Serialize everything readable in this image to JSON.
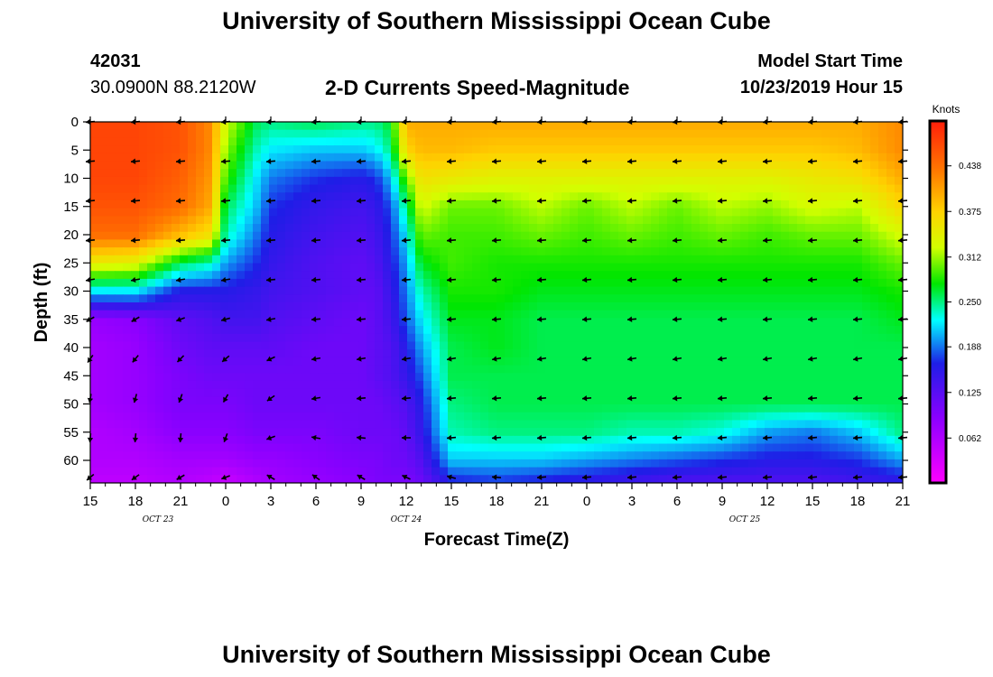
{
  "header": {
    "title_top": "University of Southern Mississippi Ocean Cube",
    "title_bottom": "University of Southern Mississippi Ocean Cube",
    "station_id": "42031",
    "station_coords": "30.0900N 88.2120W",
    "plot_title": "2-D Currents Speed-Magnitude",
    "model_start_label": "Model Start Time",
    "model_start_value": "10/23/2019 Hour 15"
  },
  "chart_data": {
    "type": "heatmap",
    "title": "2-D Currents Speed-Magnitude",
    "xlabel": "Forecast Time(Z)",
    "ylabel": "Depth (ft)",
    "x_ticks": [
      "15",
      "18",
      "21",
      "0",
      "3",
      "6",
      "9",
      "12",
      "15",
      "18",
      "21",
      "0",
      "3",
      "6",
      "9",
      "12",
      "15",
      "18",
      "21"
    ],
    "x_hours": [
      0,
      54
    ],
    "date_labels": [
      {
        "text": "OCT 23",
        "hour": 4.5
      },
      {
        "text": "OCT 24",
        "hour": 21
      },
      {
        "text": "OCT 25",
        "hour": 43.5
      }
    ],
    "y_ticks": [
      0,
      5,
      10,
      15,
      20,
      25,
      30,
      35,
      40,
      45,
      50,
      55,
      60
    ],
    "ylim": [
      0,
      64
    ],
    "colorbar": {
      "label": "Knots",
      "ticks": [
        "0.438",
        "0.375",
        "0.312",
        "0.250",
        "0.188",
        "0.125",
        "0.062"
      ],
      "tick_values": [
        0.438,
        0.375,
        0.312,
        0.25,
        0.188,
        0.125,
        0.062
      ],
      "range": [
        0.0,
        0.5
      ]
    },
    "speed_grid": {
      "hours": [
        0,
        3,
        6,
        8,
        9,
        11,
        12,
        15,
        18,
        19,
        20,
        21,
        22,
        24,
        27,
        30,
        33,
        36,
        39,
        42,
        45,
        48,
        51,
        54
      ],
      "depths": [
        0,
        5,
        10,
        15,
        20,
        25,
        30,
        35,
        40,
        45,
        50,
        55,
        60,
        64
      ],
      "values": [
        [
          0.47,
          0.47,
          0.46,
          0.42,
          0.33,
          0.26,
          0.25,
          0.26,
          0.25,
          0.25,
          0.27,
          0.4,
          0.4,
          0.4,
          0.4,
          0.4,
          0.4,
          0.4,
          0.4,
          0.4,
          0.4,
          0.4,
          0.4,
          0.42
        ],
        [
          0.47,
          0.47,
          0.46,
          0.42,
          0.31,
          0.24,
          0.22,
          0.21,
          0.21,
          0.22,
          0.25,
          0.37,
          0.39,
          0.39,
          0.38,
          0.38,
          0.38,
          0.38,
          0.38,
          0.38,
          0.38,
          0.38,
          0.39,
          0.42
        ],
        [
          0.47,
          0.47,
          0.45,
          0.41,
          0.29,
          0.22,
          0.19,
          0.17,
          0.16,
          0.17,
          0.21,
          0.3,
          0.36,
          0.35,
          0.34,
          0.34,
          0.34,
          0.34,
          0.34,
          0.34,
          0.34,
          0.35,
          0.36,
          0.4
        ],
        [
          0.46,
          0.46,
          0.44,
          0.4,
          0.26,
          0.21,
          0.17,
          0.15,
          0.14,
          0.15,
          0.18,
          0.25,
          0.33,
          0.3,
          0.3,
          0.32,
          0.3,
          0.32,
          0.3,
          0.32,
          0.31,
          0.33,
          0.32,
          0.37
        ],
        [
          0.44,
          0.44,
          0.39,
          0.36,
          0.24,
          0.19,
          0.16,
          0.14,
          0.13,
          0.14,
          0.17,
          0.22,
          0.3,
          0.29,
          0.29,
          0.3,
          0.29,
          0.3,
          0.29,
          0.3,
          0.29,
          0.3,
          0.3,
          0.33
        ],
        [
          0.35,
          0.34,
          0.26,
          0.24,
          0.2,
          0.17,
          0.15,
          0.13,
          0.12,
          0.13,
          0.16,
          0.2,
          0.27,
          0.29,
          0.28,
          0.28,
          0.28,
          0.28,
          0.28,
          0.28,
          0.28,
          0.28,
          0.28,
          0.3
        ],
        [
          0.22,
          0.22,
          0.16,
          0.16,
          0.16,
          0.15,
          0.14,
          0.13,
          0.12,
          0.12,
          0.15,
          0.19,
          0.24,
          0.28,
          0.28,
          0.27,
          0.27,
          0.27,
          0.27,
          0.27,
          0.27,
          0.27,
          0.27,
          0.28
        ],
        [
          0.08,
          0.09,
          0.12,
          0.13,
          0.14,
          0.14,
          0.13,
          0.12,
          0.11,
          0.12,
          0.14,
          0.18,
          0.22,
          0.27,
          0.27,
          0.26,
          0.26,
          0.26,
          0.26,
          0.26,
          0.26,
          0.26,
          0.26,
          0.27
        ],
        [
          0.07,
          0.08,
          0.11,
          0.12,
          0.12,
          0.12,
          0.12,
          0.11,
          0.11,
          0.12,
          0.13,
          0.16,
          0.2,
          0.26,
          0.27,
          0.26,
          0.26,
          0.26,
          0.26,
          0.26,
          0.26,
          0.26,
          0.26,
          0.26
        ],
        [
          0.07,
          0.08,
          0.1,
          0.11,
          0.11,
          0.11,
          0.11,
          0.11,
          0.11,
          0.12,
          0.13,
          0.15,
          0.18,
          0.26,
          0.26,
          0.26,
          0.26,
          0.26,
          0.26,
          0.26,
          0.26,
          0.26,
          0.26,
          0.26
        ],
        [
          0.07,
          0.08,
          0.1,
          0.1,
          0.1,
          0.11,
          0.11,
          0.11,
          0.11,
          0.11,
          0.12,
          0.13,
          0.16,
          0.25,
          0.26,
          0.26,
          0.26,
          0.26,
          0.26,
          0.26,
          0.26,
          0.26,
          0.26,
          0.26
        ],
        [
          0.06,
          0.07,
          0.09,
          0.09,
          0.09,
          0.1,
          0.1,
          0.1,
          0.11,
          0.11,
          0.11,
          0.12,
          0.15,
          0.24,
          0.25,
          0.25,
          0.25,
          0.24,
          0.24,
          0.23,
          0.2,
          0.19,
          0.21,
          0.25
        ],
        [
          0.06,
          0.06,
          0.07,
          0.07,
          0.07,
          0.08,
          0.08,
          0.09,
          0.1,
          0.1,
          0.11,
          0.11,
          0.13,
          0.21,
          0.21,
          0.21,
          0.2,
          0.19,
          0.18,
          0.17,
          0.16,
          0.16,
          0.17,
          0.2
        ],
        [
          0.05,
          0.05,
          0.06,
          0.05,
          0.04,
          0.06,
          0.07,
          0.08,
          0.09,
          0.1,
          0.1,
          0.1,
          0.11,
          0.16,
          0.17,
          0.16,
          0.15,
          0.14,
          0.13,
          0.13,
          0.13,
          0.13,
          0.14,
          0.15
        ]
      ]
    },
    "vectors": {
      "hours": [
        0,
        3,
        6,
        9,
        12,
        15,
        18,
        21,
        24,
        27,
        30,
        33,
        36,
        39,
        42,
        45,
        48,
        51,
        54
      ],
      "depths": [
        0,
        7,
        14,
        21,
        28,
        35,
        42,
        49,
        56,
        63
      ],
      "angle_rows": [
        [
          185,
          185,
          185,
          185,
          185,
          185,
          185,
          185,
          185,
          185,
          185,
          185,
          185,
          185,
          185,
          185,
          185,
          185,
          185
        ],
        [
          185,
          185,
          185,
          185,
          185,
          185,
          185,
          185,
          185,
          185,
          185,
          185,
          185,
          185,
          185,
          185,
          185,
          185,
          185
        ],
        [
          185,
          185,
          185,
          185,
          185,
          185,
          185,
          185,
          185,
          185,
          185,
          185,
          185,
          185,
          185,
          185,
          185,
          185,
          185
        ],
        [
          185,
          185,
          185,
          185,
          185,
          185,
          185,
          185,
          185,
          185,
          185,
          185,
          185,
          185,
          185,
          185,
          185,
          185,
          185
        ],
        [
          190,
          190,
          190,
          190,
          185,
          185,
          185,
          185,
          185,
          185,
          185,
          185,
          185,
          185,
          185,
          185,
          185,
          185,
          185
        ],
        [
          210,
          210,
          200,
          195,
          190,
          185,
          185,
          185,
          185,
          185,
          185,
          185,
          185,
          185,
          185,
          185,
          185,
          185,
          185
        ],
        [
          235,
          230,
          225,
          220,
          205,
          190,
          190,
          190,
          190,
          190,
          190,
          190,
          190,
          190,
          190,
          190,
          190,
          190,
          190
        ],
        [
          260,
          255,
          250,
          240,
          215,
          190,
          185,
          185,
          185,
          185,
          185,
          185,
          185,
          185,
          185,
          185,
          185,
          185,
          185
        ],
        [
          265,
          265,
          265,
          250,
          200,
          170,
          175,
          180,
          185,
          185,
          185,
          185,
          185,
          185,
          185,
          185,
          185,
          185,
          185
        ],
        [
          220,
          215,
          210,
          200,
          150,
          145,
          150,
          155,
          165,
          175,
          185,
          185,
          185,
          185,
          185,
          185,
          185,
          185,
          185
        ]
      ]
    }
  }
}
